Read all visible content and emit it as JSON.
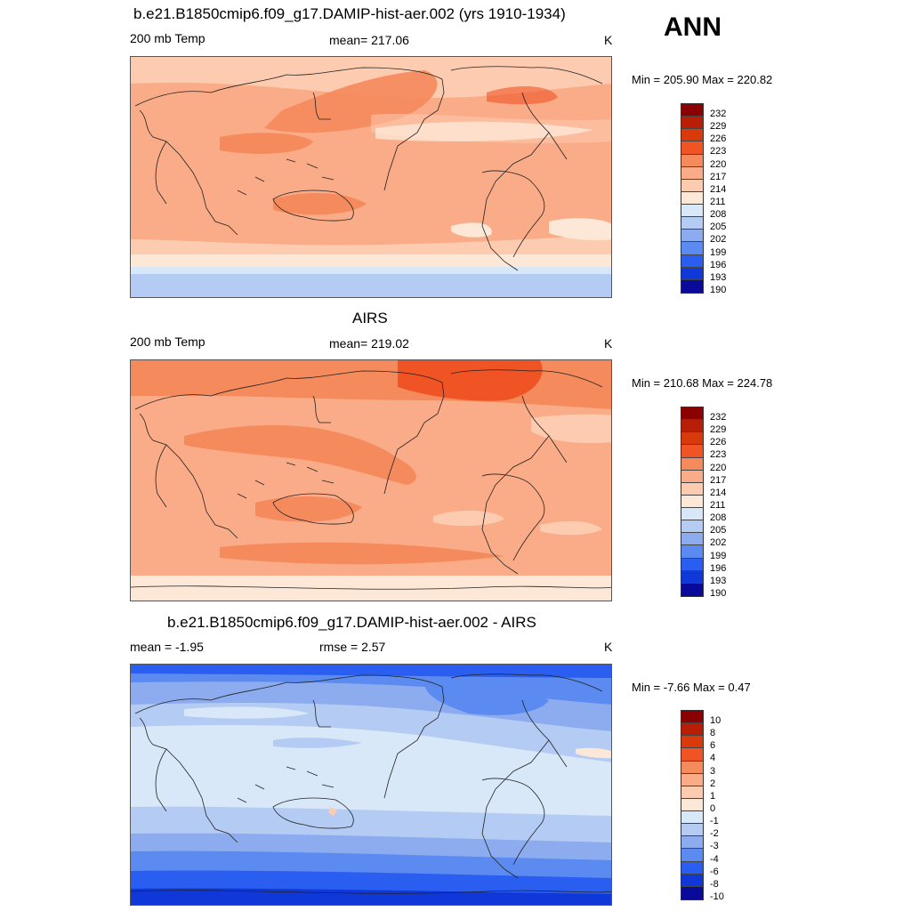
{
  "season": "ANN",
  "panels": [
    {
      "title": "b.e21.B1850cmip6.f09_g17.DAMIP-hist-aer.002 (yrs 1910-1934)",
      "left_label": "200 mb Temp",
      "center_label": "mean= 217.06",
      "units": "K",
      "minmax": "Min = 205.90 Max = 220.82",
      "colorbar": [
        "232",
        "229",
        "226",
        "223",
        "220",
        "217",
        "214",
        "211",
        "208",
        "205",
        "202",
        "199",
        "196",
        "193",
        "190"
      ]
    },
    {
      "title": "AIRS",
      "left_label": "200 mb Temp",
      "center_label": "mean= 219.02",
      "units": "K",
      "minmax": "Min = 210.68 Max = 224.78",
      "colorbar": [
        "232",
        "229",
        "226",
        "223",
        "220",
        "217",
        "214",
        "211",
        "208",
        "205",
        "202",
        "199",
        "196",
        "193",
        "190"
      ]
    },
    {
      "title": "b.e21.B1850cmip6.f09_g17.DAMIP-hist-aer.002 - AIRS",
      "left_label": "mean =  -1.95",
      "center_label": "rmse =   2.57",
      "units": "K",
      "minmax": "Min =  -7.66 Max =   0.47",
      "colorbar": [
        "10",
        "8",
        "6",
        "4",
        "3",
        "2",
        "1",
        "0",
        "-1",
        "-2",
        "-3",
        "-4",
        "-6",
        "-8",
        "-10"
      ]
    }
  ],
  "colors": {
    "abs_scale": [
      "#8b0000",
      "#b81e06",
      "#d83a0b",
      "#f05424",
      "#f58a5c",
      "#faab87",
      "#fdcbb0",
      "#fde7d6",
      "#d9e8f8",
      "#b4ccf3",
      "#8cacef",
      "#5b8af0",
      "#2a5ef0",
      "#1038d8",
      "#0a0a9a"
    ],
    "diff_scale": [
      "#8b0000",
      "#b81e06",
      "#d83a0b",
      "#f05424",
      "#f58a5c",
      "#faab87",
      "#fdcbb0",
      "#fde7d6",
      "#d9e8f8",
      "#b4ccf3",
      "#8cacef",
      "#5b8af0",
      "#2a5ef0",
      "#1038d8",
      "#0a0a9a"
    ]
  }
}
